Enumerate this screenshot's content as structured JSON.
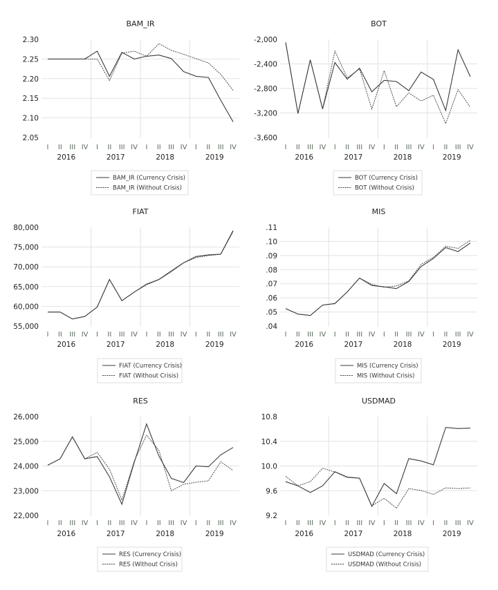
{
  "chart_data": [
    {
      "type": "line",
      "title": "BAM_IR",
      "categories": [
        "I",
        "II",
        "III",
        "IV",
        "I",
        "II",
        "III",
        "IV",
        "I",
        "II",
        "III",
        "IV",
        "I",
        "II",
        "III",
        "IV"
      ],
      "years": [
        "2016",
        "2017",
        "2018",
        "2019"
      ],
      "yticks": [
        "2.05",
        "2.10",
        "2.15",
        "2.20",
        "2.25",
        "2.30"
      ],
      "ylim": [
        2.05,
        2.3
      ],
      "grid": true,
      "legend_position": "bottom",
      "series": [
        {
          "name": "BAM_IR (Currency Crisis)",
          "style": "solid",
          "values": [
            2.25,
            2.25,
            2.25,
            2.25,
            2.27,
            2.206,
            2.267,
            2.25,
            2.257,
            2.26,
            2.251,
            2.218,
            2.206,
            2.203,
            2.145,
            2.09
          ]
        },
        {
          "name": "BAM_IR (Without Crisis)",
          "style": "dashed",
          "values": [
            2.25,
            2.25,
            2.25,
            2.25,
            2.25,
            2.195,
            2.265,
            2.27,
            2.257,
            2.289,
            2.272,
            2.262,
            2.251,
            2.24,
            2.211,
            2.17
          ]
        }
      ]
    },
    {
      "type": "line",
      "title": "BOT",
      "categories": [
        "I",
        "II",
        "III",
        "IV",
        "I",
        "II",
        "III",
        "IV",
        "I",
        "II",
        "III",
        "IV",
        "I",
        "II",
        "III",
        "IV"
      ],
      "years": [
        "2016",
        "2017",
        "2018",
        "2019"
      ],
      "yticks": [
        "-3,600",
        "-3,200",
        "-2,800",
        "-2,400",
        "-2,000"
      ],
      "ylim": [
        -3600,
        -2000
      ],
      "grid": true,
      "legend_position": "bottom",
      "series": [
        {
          "name": "BOT (Currency Crisis)",
          "style": "solid",
          "values": [
            -2050,
            -3210,
            -2333,
            -3135,
            -2377,
            -2650,
            -2470,
            -2855,
            -2668,
            -2687,
            -2836,
            -2533,
            -2652,
            -3160,
            -2171,
            -2608
          ]
        },
        {
          "name": "BOT (Without Crisis)",
          "style": "dashed",
          "values": [
            -2050,
            -3210,
            -2333,
            -3135,
            -2190,
            -2630,
            -2482,
            -3135,
            -2512,
            -3098,
            -2873,
            -3004,
            -2911,
            -3374,
            -2819,
            -3108
          ]
        }
      ]
    },
    {
      "type": "line",
      "title": "FIAT",
      "categories": [
        "I",
        "II",
        "III",
        "IV",
        "I",
        "II",
        "III",
        "IV",
        "I",
        "II",
        "III",
        "IV",
        "I",
        "II",
        "III",
        "IV"
      ],
      "years": [
        "2016",
        "2017",
        "2018",
        "2019"
      ],
      "yticks": [
        "55,000",
        "60,000",
        "65,000",
        "70,000",
        "75,000",
        "80,000"
      ],
      "ylim": [
        55000,
        80000
      ],
      "grid": true,
      "legend_position": "bottom",
      "series": [
        {
          "name": "FIAT (Currency Crisis)",
          "style": "solid",
          "values": [
            58550,
            58550,
            56800,
            57430,
            59820,
            66800,
            61440,
            63600,
            65630,
            66800,
            68950,
            71040,
            72600,
            73020,
            73200,
            79180
          ]
        },
        {
          "name": "FIAT (Without Crisis)",
          "style": "dashed",
          "values": [
            58550,
            58550,
            56800,
            57430,
            59820,
            66800,
            61440,
            63600,
            65450,
            66750,
            68750,
            71000,
            72350,
            72850,
            73150,
            78900
          ]
        }
      ]
    },
    {
      "type": "line",
      "title": "MIS",
      "categories": [
        "I",
        "II",
        "III",
        "IV",
        "I",
        "II",
        "III",
        "IV",
        "I",
        "II",
        "III",
        "IV",
        "I",
        "II",
        "III",
        "IV"
      ],
      "years": [
        "2016",
        "2017",
        "2018",
        "2019"
      ],
      "yticks": [
        ".04",
        ".05",
        ".06",
        ".07",
        ".08",
        ".09",
        ".10",
        ".11"
      ],
      "ylim": [
        0.04,
        0.11
      ],
      "grid": true,
      "legend_position": "bottom",
      "series": [
        {
          "name": "MIS (Currency Crisis)",
          "style": "solid",
          "values": [
            0.0524,
            0.0485,
            0.0475,
            0.0549,
            0.056,
            0.0642,
            0.074,
            0.0688,
            0.0678,
            0.0666,
            0.0716,
            0.0822,
            0.0879,
            0.0956,
            0.0928,
            0.0989
          ]
        },
        {
          "name": "MIS (Without Crisis)",
          "style": "dashed",
          "values": [
            0.0524,
            0.0485,
            0.0475,
            0.0549,
            0.0558,
            0.0642,
            0.074,
            0.0695,
            0.0675,
            0.0685,
            0.072,
            0.0837,
            0.0887,
            0.0966,
            0.095,
            0.1008
          ]
        }
      ]
    },
    {
      "type": "line",
      "title": "RES",
      "categories": [
        "I",
        "II",
        "III",
        "IV",
        "I",
        "II",
        "III",
        "IV",
        "I",
        "II",
        "III",
        "IV",
        "I",
        "II",
        "III",
        "IV"
      ],
      "years": [
        "2016",
        "2017",
        "2018",
        "2019"
      ],
      "yticks": [
        "22,000",
        "23,000",
        "24,000",
        "25,000",
        "26,000"
      ],
      "ylim": [
        22000,
        26000
      ],
      "grid": true,
      "legend_position": "bottom",
      "series": [
        {
          "name": "RES (Currency Crisis)",
          "style": "solid",
          "values": [
            24030,
            24290,
            25180,
            24290,
            24380,
            23560,
            22450,
            24150,
            25700,
            24400,
            23500,
            23330,
            24000,
            23970,
            24450,
            24750
          ]
        },
        {
          "name": "RES (Without Crisis)",
          "style": "dashed",
          "values": [
            24030,
            24290,
            25180,
            24290,
            24550,
            23870,
            22620,
            24200,
            25250,
            24630,
            23000,
            23260,
            23340,
            23400,
            24170,
            23820
          ]
        }
      ]
    },
    {
      "type": "line",
      "title": "USDMAD",
      "categories": [
        "I",
        "II",
        "III",
        "IV",
        "I",
        "II",
        "III",
        "IV",
        "I",
        "II",
        "III",
        "IV",
        "I",
        "II",
        "III",
        "IV"
      ],
      "years": [
        "2016",
        "2017",
        "2018",
        "2019"
      ],
      "yticks": [
        "9.2",
        "9.6",
        "10.0",
        "10.4",
        "10.8"
      ],
      "ylim": [
        9.2,
        10.8
      ],
      "grid": true,
      "legend_position": "bottom",
      "series": [
        {
          "name": "USDMAD (Currency Crisis)",
          "style": "solid",
          "values": [
            9.746,
            9.679,
            9.57,
            9.679,
            9.907,
            9.821,
            9.802,
            9.346,
            9.716,
            9.551,
            10.12,
            10.082,
            10.019,
            10.624,
            10.606,
            10.613
          ]
        },
        {
          "name": "USDMAD (Without Crisis)",
          "style": "dashed",
          "values": [
            9.832,
            9.679,
            9.746,
            9.963,
            9.903,
            9.813,
            9.802,
            9.353,
            9.477,
            9.316,
            9.634,
            9.604,
            9.54,
            9.645,
            9.634,
            9.645
          ]
        }
      ]
    }
  ],
  "colors": {
    "line": "#3a3a3a",
    "grid": "#e2e2e2",
    "quarter_tick_text": "#5a6a5a"
  }
}
